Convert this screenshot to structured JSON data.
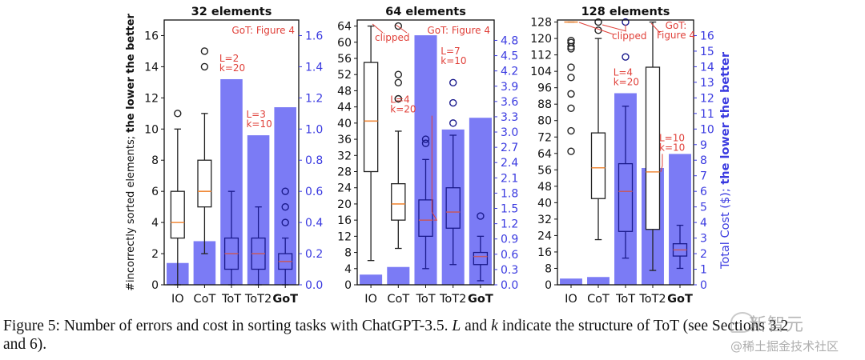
{
  "figure": {
    "caption_prefix": "Figure 5: Number of errors and cost in sorting tasks with ChatGPT-3.5. ",
    "caption_L": "L",
    "caption_mid1": " and ",
    "caption_k": "k",
    "caption_mid2": " indicate the structure of ToT (see Sections 3.2",
    "caption_line2": "and 6).",
    "watermark_main": "新智元",
    "watermark_sub": "@稀土掘金技术社区"
  },
  "colors": {
    "bar": "#7b7bf5",
    "box_over_bar": "#1a1a8c",
    "box_plain": "#222222",
    "median_plain": "#f08a3a",
    "median_over_bar": "#c05a6a",
    "annotation": "#e0413a",
    "right_axis": "#3a3ae0"
  },
  "chart_data": [
    {
      "type": "box+bar",
      "title": "32 elements",
      "ylabel": "#incorrectly sorted elements; the lower the better",
      "ylabel_plain": "#incorrectly sorted elements; ",
      "ylabel_bold": "the lower the better",
      "y2label": "",
      "categories": [
        "IO",
        "CoT",
        "ToT",
        "ToT2",
        "GoT"
      ],
      "ylim": [
        0,
        17
      ],
      "yticks": [
        0,
        2,
        4,
        6,
        8,
        10,
        12,
        14,
        16
      ],
      "y2lim": [
        0,
        1.7
      ],
      "y2ticks": [
        "0.0",
        "0.2",
        "0.4",
        "0.6",
        "0.8",
        "1.0",
        "1.2",
        "1.4",
        "1.6"
      ],
      "cost_bars": [
        0.14,
        0.28,
        1.32,
        0.96,
        1.14
      ],
      "boxes": [
        {
          "whislo": 0,
          "q1": 3,
          "med": 4,
          "q3": 6,
          "whishi": 10,
          "fliers": [
            11
          ]
        },
        {
          "whislo": 2,
          "q1": 5,
          "med": 6,
          "q3": 8,
          "whishi": 11,
          "fliers": [
            14,
            15
          ]
        },
        {
          "whislo": 0,
          "q1": 1,
          "med": 2,
          "q3": 3,
          "whishi": 6,
          "fliers": []
        },
        {
          "whislo": 0,
          "q1": 1,
          "med": 2,
          "q3": 3,
          "whishi": 5,
          "fliers": []
        },
        {
          "whislo": 0,
          "q1": 1,
          "med": 1.5,
          "q3": 2,
          "whishi": 3,
          "fliers": [
            4,
            5,
            6
          ]
        }
      ],
      "annotations": [
        {
          "text": "GoT: Figure 4",
          "pos": "top-right"
        },
        {
          "text": "L=2\nk=20",
          "target": "ToT"
        },
        {
          "text": "L=3\nk=10",
          "target": "ToT2"
        }
      ]
    },
    {
      "type": "box+bar",
      "title": "64 elements",
      "ylabel": "",
      "categories": [
        "IO",
        "CoT",
        "ToT",
        "ToT2",
        "GoT"
      ],
      "ylim": [
        0,
        65.5
      ],
      "yticks": [
        0,
        4,
        8,
        12,
        16,
        20,
        24,
        28,
        32,
        36,
        40,
        44,
        48,
        52,
        56,
        60,
        64
      ],
      "y2lim": [
        0,
        5.2
      ],
      "y2ticks": [
        "0.0",
        "0.3",
        "0.6",
        "0.9",
        "1.2",
        "1.5",
        "1.8",
        "2.1",
        "2.4",
        "2.7",
        "3.0",
        "3.3",
        "3.6",
        "3.9",
        "4.2",
        "4.5",
        "4.8"
      ],
      "cost_bars": [
        0.2,
        0.35,
        4.9,
        3.05,
        3.28
      ],
      "boxes": [
        {
          "whislo": 6,
          "q1": 28,
          "med": 40.5,
          "q3": 55,
          "whishi": 64,
          "fliers": []
        },
        {
          "whislo": 9,
          "q1": 16,
          "med": 20,
          "q3": 25,
          "whishi": 38,
          "fliers": [
            46,
            46,
            50,
            52,
            64
          ]
        },
        {
          "whislo": 4,
          "q1": 12,
          "med": 16,
          "q3": 21,
          "whishi": 31,
          "fliers": [
            35,
            36
          ]
        },
        {
          "whislo": 5,
          "q1": 14,
          "med": 18,
          "q3": 24,
          "whishi": 37,
          "fliers": [
            40,
            45,
            50
          ]
        },
        {
          "whislo": 1,
          "q1": 5,
          "med": 7,
          "q3": 8,
          "whishi": 12,
          "fliers": [
            17
          ]
        }
      ],
      "annotations": [
        {
          "text": "GoT: Figure 4",
          "pos": "top-right"
        },
        {
          "text": "clipped",
          "target": "IO,CoT"
        },
        {
          "text": "L=4\nk=20",
          "target": "ToT"
        },
        {
          "text": "L=7\nk=10",
          "target": "ToT2"
        }
      ]
    },
    {
      "type": "box+bar",
      "title": "128 elements",
      "ylabel": "",
      "y2label": "Total Cost ($); the lower the better",
      "y2label_plain": "Total Cost ($); ",
      "y2label_bold": "the lower the better",
      "categories": [
        "IO",
        "CoT",
        "ToT",
        "ToT2",
        "GoT"
      ],
      "ylim": [
        0,
        129
      ],
      "yticks": [
        0,
        8,
        16,
        24,
        32,
        40,
        48,
        56,
        64,
        72,
        80,
        88,
        96,
        104,
        112,
        120,
        128
      ],
      "y2lim": [
        0,
        17
      ],
      "y2ticks": [
        "0",
        "1",
        "2",
        "3",
        "4",
        "5",
        "6",
        "7",
        "8",
        "9",
        "10",
        "11",
        "12",
        "13",
        "14",
        "15",
        "16"
      ],
      "cost_bars": [
        0.4,
        0.5,
        12.3,
        7.5,
        8.4
      ],
      "boxes": [
        {
          "whislo": 128,
          "q1": 128,
          "med": 128,
          "q3": 128,
          "whishi": 128,
          "fliers": [
            65,
            75,
            86,
            93,
            101,
            106,
            115,
            116,
            118,
            119
          ]
        },
        {
          "whislo": 22,
          "q1": 42,
          "med": 57,
          "q3": 74,
          "whishi": 120,
          "fliers": [
            124,
            128
          ]
        },
        {
          "whislo": 13,
          "q1": 26,
          "med": 45.5,
          "q3": 59,
          "whishi": 87,
          "fliers": [
            111,
            128
          ]
        },
        {
          "whislo": 7,
          "q1": 27,
          "med": 55,
          "q3": 106,
          "whishi": 128,
          "fliers": []
        },
        {
          "whislo": 8,
          "q1": 14,
          "med": 17,
          "q3": 20,
          "whishi": 29,
          "fliers": []
        }
      ],
      "annotations": [
        {
          "text": "GoT:\nFigure 4",
          "pos": "top-right"
        },
        {
          "text": "clipped",
          "target": "IO,CoT,ToT"
        },
        {
          "text": "L=4\nk=20",
          "target": "ToT"
        },
        {
          "text": "L=10\nk=10",
          "target": "ToT2"
        }
      ]
    }
  ]
}
